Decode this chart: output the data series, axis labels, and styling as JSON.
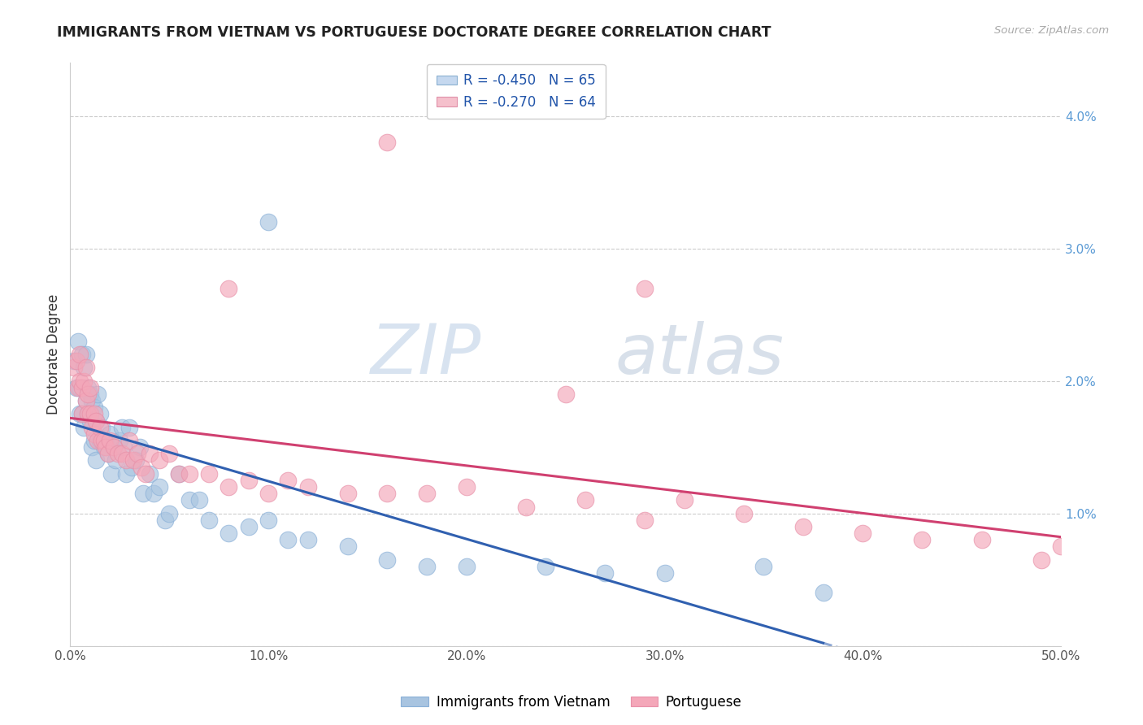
{
  "title": "IMMIGRANTS FROM VIETNAM VS PORTUGUESE DOCTORATE DEGREE CORRELATION CHART",
  "source": "Source: ZipAtlas.com",
  "ylabel": "Doctorate Degree",
  "xlim": [
    0.0,
    0.5
  ],
  "ylim": [
    0.0,
    0.044
  ],
  "legend_r1": "R = -0.450",
  "legend_n1": "N = 65",
  "legend_r2": "R = -0.270",
  "legend_n2": "N = 64",
  "legend_label1": "Immigrants from Vietnam",
  "legend_label2": "Portuguese",
  "blue_color": "#a8c4e0",
  "pink_color": "#f4a7b9",
  "blue_line_color": "#3060b0",
  "pink_line_color": "#d04070",
  "watermark_zip": "ZIP",
  "watermark_atlas": "atlas",
  "blue_x": [
    0.002,
    0.003,
    0.004,
    0.005,
    0.005,
    0.006,
    0.006,
    0.007,
    0.007,
    0.008,
    0.008,
    0.009,
    0.009,
    0.01,
    0.01,
    0.011,
    0.011,
    0.012,
    0.012,
    0.013,
    0.013,
    0.014,
    0.015,
    0.015,
    0.016,
    0.017,
    0.018,
    0.019,
    0.02,
    0.021,
    0.022,
    0.023,
    0.025,
    0.026,
    0.027,
    0.028,
    0.03,
    0.031,
    0.033,
    0.035,
    0.037,
    0.04,
    0.042,
    0.045,
    0.048,
    0.05,
    0.055,
    0.06,
    0.065,
    0.07,
    0.08,
    0.09,
    0.1,
    0.11,
    0.12,
    0.14,
    0.16,
    0.18,
    0.2,
    0.24,
    0.27,
    0.3,
    0.35,
    0.38,
    0.1
  ],
  "blue_y": [
    0.0215,
    0.0195,
    0.023,
    0.0195,
    0.0175,
    0.022,
    0.0175,
    0.021,
    0.0165,
    0.022,
    0.0185,
    0.0175,
    0.0195,
    0.019,
    0.017,
    0.0185,
    0.015,
    0.018,
    0.0155,
    0.017,
    0.014,
    0.019,
    0.0175,
    0.0155,
    0.0165,
    0.015,
    0.0155,
    0.0145,
    0.016,
    0.013,
    0.015,
    0.014,
    0.0155,
    0.0165,
    0.015,
    0.013,
    0.0165,
    0.0135,
    0.014,
    0.015,
    0.0115,
    0.013,
    0.0115,
    0.012,
    0.0095,
    0.01,
    0.013,
    0.011,
    0.011,
    0.0095,
    0.0085,
    0.009,
    0.0095,
    0.008,
    0.008,
    0.0075,
    0.0065,
    0.006,
    0.006,
    0.006,
    0.0055,
    0.0055,
    0.006,
    0.004,
    0.032
  ],
  "pink_x": [
    0.002,
    0.003,
    0.004,
    0.005,
    0.005,
    0.006,
    0.006,
    0.007,
    0.008,
    0.008,
    0.009,
    0.009,
    0.01,
    0.01,
    0.011,
    0.012,
    0.012,
    0.013,
    0.014,
    0.015,
    0.016,
    0.017,
    0.018,
    0.019,
    0.02,
    0.022,
    0.024,
    0.026,
    0.028,
    0.03,
    0.032,
    0.034,
    0.036,
    0.038,
    0.04,
    0.045,
    0.05,
    0.055,
    0.06,
    0.07,
    0.08,
    0.09,
    0.1,
    0.11,
    0.12,
    0.14,
    0.16,
    0.18,
    0.2,
    0.23,
    0.26,
    0.29,
    0.31,
    0.34,
    0.37,
    0.4,
    0.43,
    0.46,
    0.49,
    0.5,
    0.08,
    0.25,
    0.16,
    0.29
  ],
  "pink_y": [
    0.021,
    0.0215,
    0.0195,
    0.022,
    0.02,
    0.0195,
    0.0175,
    0.02,
    0.021,
    0.0185,
    0.019,
    0.0175,
    0.0195,
    0.0175,
    0.0165,
    0.0175,
    0.016,
    0.017,
    0.0155,
    0.0165,
    0.0155,
    0.0155,
    0.015,
    0.0145,
    0.0155,
    0.015,
    0.0145,
    0.0145,
    0.014,
    0.0155,
    0.014,
    0.0145,
    0.0135,
    0.013,
    0.0145,
    0.014,
    0.0145,
    0.013,
    0.013,
    0.013,
    0.012,
    0.0125,
    0.0115,
    0.0125,
    0.012,
    0.0115,
    0.0115,
    0.0115,
    0.012,
    0.0105,
    0.011,
    0.0095,
    0.011,
    0.01,
    0.009,
    0.0085,
    0.008,
    0.008,
    0.0065,
    0.0075,
    0.027,
    0.019,
    0.038,
    0.027
  ]
}
